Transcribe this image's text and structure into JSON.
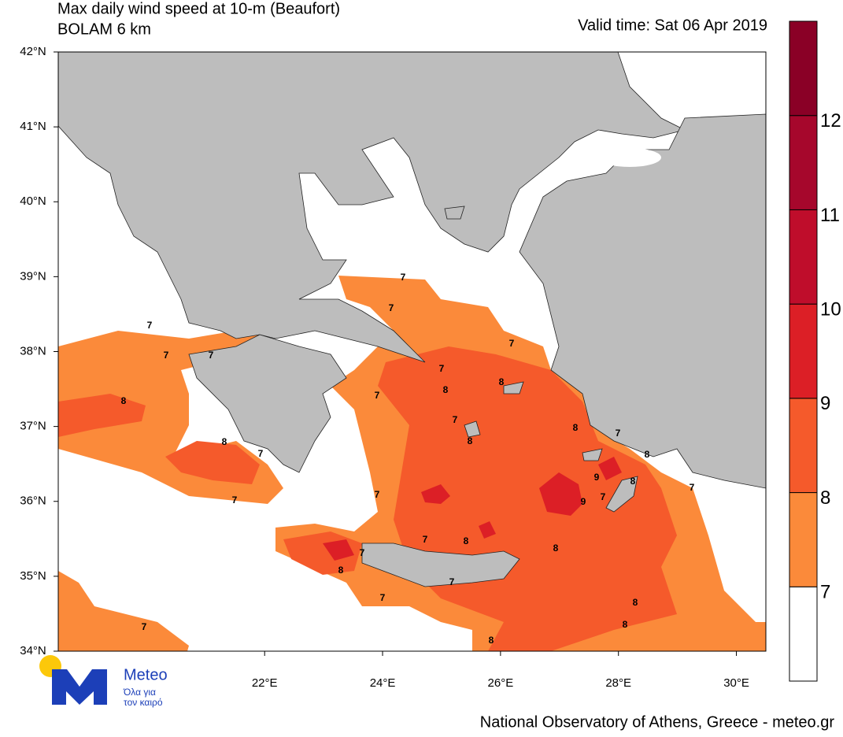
{
  "header": {
    "title": "Max daily wind speed at 10-m (Beaufort)",
    "subtitle": "BOLAM 6 km",
    "valid_time": "Valid time: Sat 06 Apr 2019"
  },
  "map": {
    "xlim": [
      18.5,
      30.5
    ],
    "ylim": [
      34,
      42
    ],
    "xticks": [
      {
        "value": 22,
        "label": "22°E"
      },
      {
        "value": 24,
        "label": "24°E"
      },
      {
        "value": 26,
        "label": "26°E"
      },
      {
        "value": 28,
        "label": "28°E"
      },
      {
        "value": 30,
        "label": "30°E"
      }
    ],
    "yticks": [
      {
        "value": 34,
        "label": "34°N"
      },
      {
        "value": 35,
        "label": "35°N"
      },
      {
        "value": 36,
        "label": "36°N"
      },
      {
        "value": 37,
        "label": "37°N"
      },
      {
        "value": 38,
        "label": "38°N"
      },
      {
        "value": 39,
        "label": "39°N"
      },
      {
        "value": 40,
        "label": "40°N"
      },
      {
        "value": 41,
        "label": "41°N"
      },
      {
        "value": 42,
        "label": "42°N"
      }
    ],
    "contour_labels": [
      7,
      7,
      7,
      7,
      7,
      7,
      7,
      8,
      8,
      7,
      8,
      7,
      8,
      7,
      8,
      8,
      7,
      8,
      9,
      8,
      7,
      7,
      7,
      9,
      7,
      7,
      8,
      7,
      8,
      8,
      7,
      7,
      8,
      8,
      7,
      8
    ]
  },
  "colorbar": {
    "levels": [
      7,
      8,
      9,
      10,
      11,
      12
    ],
    "colors": [
      "#ffffff",
      "#fb8a3a",
      "#f55a2b",
      "#dc1f26",
      "#bf0d2b",
      "#a6072c",
      "#8a0026"
    ]
  },
  "logo": {
    "name": "Meteo",
    "tagline_1": "Όλα για",
    "tagline_2": "τον καιρό"
  },
  "footer": "National Observatory of Athens, Greece - meteo.gr"
}
